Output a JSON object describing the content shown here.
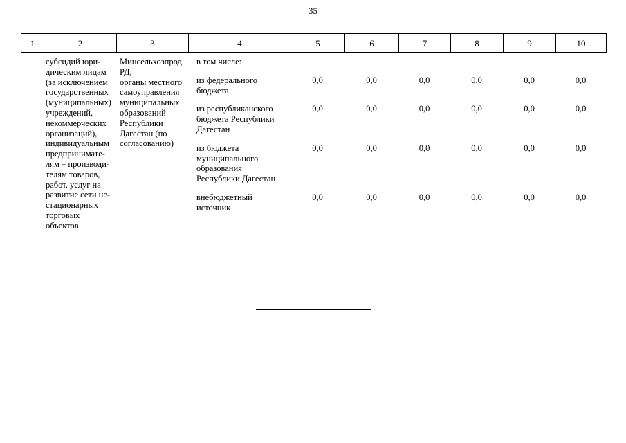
{
  "page": {
    "number": "35"
  },
  "table": {
    "header_columns": [
      "1",
      "2",
      "3",
      "4",
      "5",
      "6",
      "7",
      "8",
      "9",
      "10"
    ],
    "row": {
      "col2": "субсидий юри-\nдическим лицам\n(за исключением\nгосударственных\n(муниципальных)\nучреждений,\nнекоммерческих\nорганизаций),\nиндивидуальным\nпредпринимате-\nлям – производи-\nтелям товаров,\nработ, услуг на\nразвитие сети не-\nстационарных\nторговых\nобъектов",
      "col3": "Минсельхозпрод\nРД,\nорганы местного\nсамоуправления\nмуниципальных\nобразований\nРеспублики\nДагестан (по\nсогласованию)",
      "col4_intro": "в том числе:",
      "subrows": [
        {
          "label": "из федерального\nбюджета",
          "values": [
            "0,0",
            "0,0",
            "0,0",
            "0,0",
            "0,0",
            "0,0"
          ]
        },
        {
          "label": "из республиканского\nбюджета Республики\nДагестан",
          "values": [
            "0,0",
            "0,0",
            "0,0",
            "0,0",
            "0,0",
            "0,0"
          ]
        },
        {
          "label": "из бюджета\nмуниципального\nобразования\nРеспублики Дагестан",
          "values": [
            "0,0",
            "0,0",
            "0,0",
            "0,0",
            "0,0",
            "0,0"
          ]
        },
        {
          "label": "внебюджетный\nисточник",
          "values": [
            "0,0",
            "0,0",
            "0,0",
            "0,0",
            "0,0",
            "0,0"
          ]
        }
      ]
    }
  }
}
